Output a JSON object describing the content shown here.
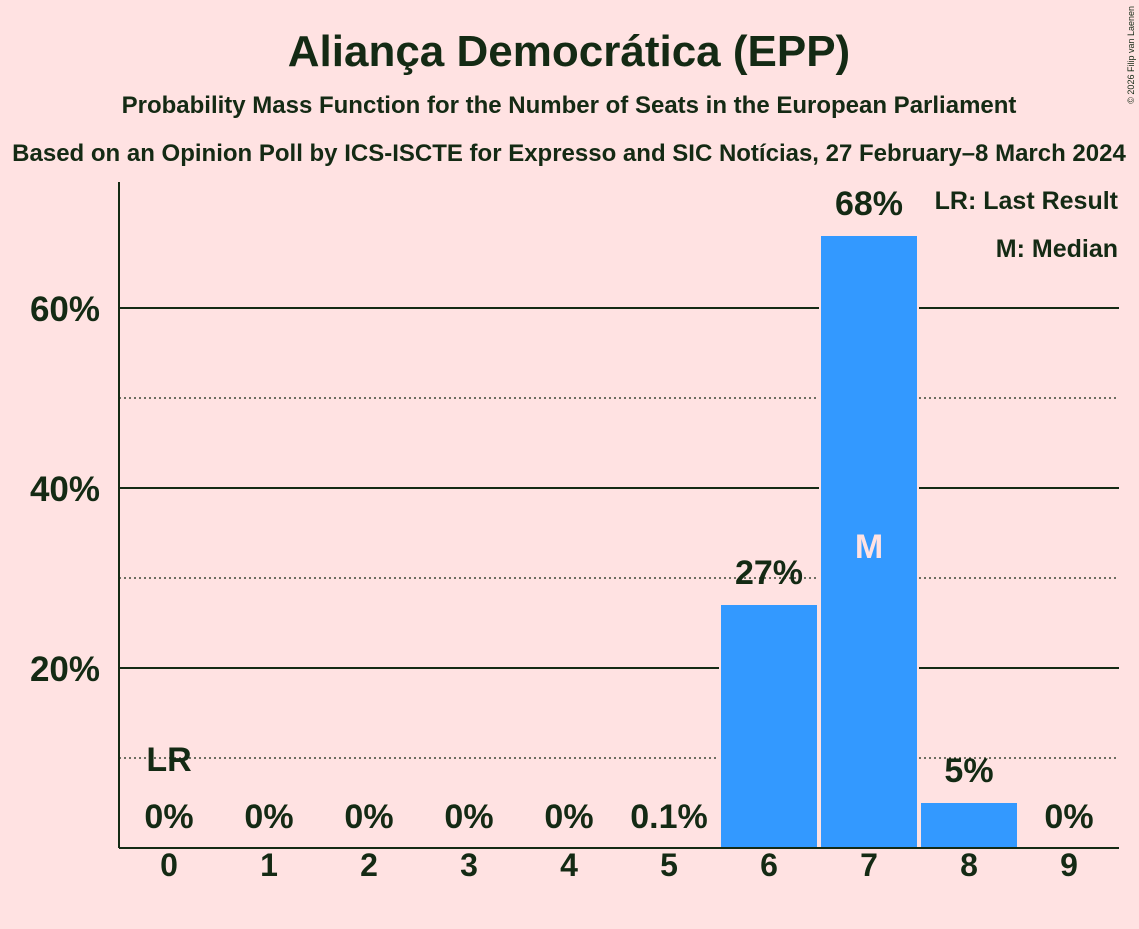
{
  "colors": {
    "background": "#ffe2e2",
    "bar": "#3399ff",
    "text": "#142a14",
    "grid": "#142a14",
    "median_label": "#ffe2e2"
  },
  "copyright": "© 2026 Filip van Laenen",
  "chart_data": {
    "type": "bar",
    "title": "Aliança Democrática (EPP)",
    "subtitle": "Probability Mass Function for the Number of Seats in the European Parliament",
    "source": "Based on an Opinion Poll by ICS-ISCTE for Expresso and SIC Notícias, 27 February–8 March 2024",
    "categories": [
      "0",
      "1",
      "2",
      "3",
      "4",
      "5",
      "6",
      "7",
      "8",
      "9"
    ],
    "values": [
      0,
      0,
      0,
      0,
      0,
      0.1,
      27,
      68,
      5,
      0
    ],
    "value_labels": [
      "0%",
      "0%",
      "0%",
      "0%",
      "0%",
      "0.1%",
      "27%",
      "68%",
      "5%",
      "0%"
    ],
    "ylim": [
      0,
      74
    ],
    "major_ticks": [
      20,
      40,
      60
    ],
    "major_tick_labels": [
      "20%",
      "40%",
      "60%"
    ],
    "minor_gridlines": [
      10,
      30,
      50
    ],
    "last_result": {
      "seat": "0",
      "label": "LR"
    },
    "median": {
      "seat": "7",
      "label": "M"
    },
    "legend": {
      "position": "top-right",
      "entries": [
        "LR: Last Result",
        "M: Median"
      ]
    }
  }
}
